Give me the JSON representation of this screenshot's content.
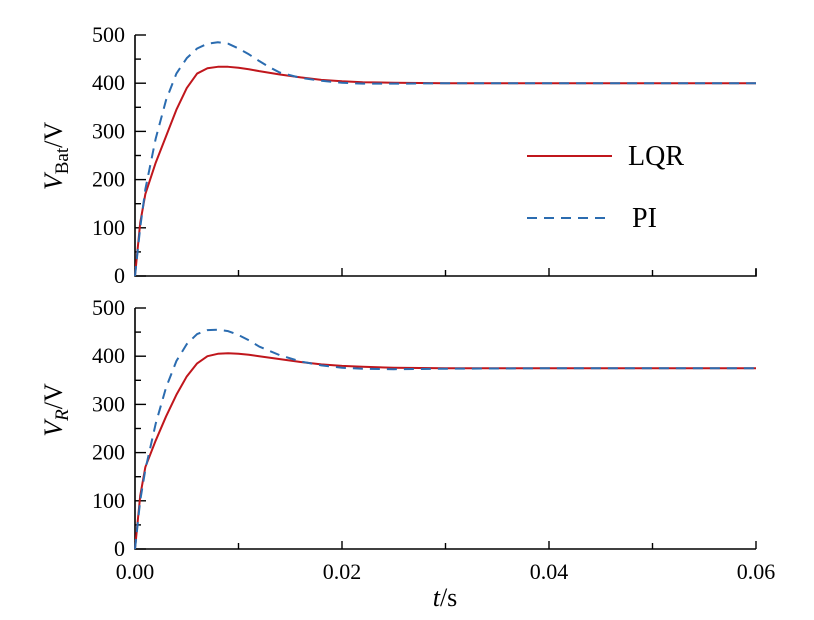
{
  "chart_data": [
    {
      "type": "line",
      "panel": "top",
      "ylabel": {
        "main": "V",
        "sub": "Bat",
        "unit": "/V"
      },
      "xlim": [
        0,
        0.06
      ],
      "ylim": [
        0,
        500
      ],
      "yticks": [
        0,
        100,
        200,
        300,
        400,
        500
      ],
      "ytick_labels": [
        "0",
        "100",
        "200",
        "300",
        "400",
        "500"
      ],
      "legend_position": "right",
      "series": [
        {
          "name": "LQR",
          "color": "#c0161c",
          "style": "solid",
          "x": [
            0,
            0.0005,
            0.001,
            0.002,
            0.003,
            0.004,
            0.005,
            0.006,
            0.007,
            0.008,
            0.009,
            0.01,
            0.011,
            0.012,
            0.014,
            0.016,
            0.018,
            0.02,
            0.022,
            0.025,
            0.03,
            0.04,
            0.05,
            0.06
          ],
          "y": [
            0,
            110,
            170,
            235,
            290,
            345,
            390,
            420,
            431,
            434,
            434,
            432,
            429,
            425,
            418,
            412,
            407,
            404,
            402,
            401,
            400,
            400,
            400,
            400
          ]
        },
        {
          "name": "PI",
          "color": "#2b6cb0",
          "style": "dashed",
          "x": [
            0,
            0.0005,
            0.001,
            0.002,
            0.003,
            0.004,
            0.005,
            0.006,
            0.007,
            0.008,
            0.009,
            0.01,
            0.011,
            0.012,
            0.013,
            0.014,
            0.016,
            0.018,
            0.02,
            0.022,
            0.025,
            0.03,
            0.04,
            0.05,
            0.06
          ],
          "y": [
            0,
            100,
            180,
            285,
            365,
            420,
            452,
            472,
            482,
            485,
            482,
            472,
            460,
            446,
            433,
            422,
            411,
            405,
            401,
            399,
            399,
            400,
            400,
            400,
            400
          ]
        }
      ]
    },
    {
      "type": "line",
      "panel": "bottom",
      "ylabel": {
        "main": "V",
        "sub": "R",
        "unit": "/V"
      },
      "xlabel": {
        "main": "t",
        "unit": "/s"
      },
      "xlim": [
        0,
        0.06
      ],
      "ylim": [
        0,
        500
      ],
      "xticks": [
        0,
        0.02,
        0.04,
        0.06
      ],
      "xtick_labels": [
        "0.00",
        "0.02",
        "0.04",
        "0.06"
      ],
      "yticks": [
        0,
        100,
        200,
        300,
        400,
        500
      ],
      "ytick_labels": [
        "0",
        "100",
        "200",
        "300",
        "400",
        "500"
      ],
      "series": [
        {
          "name": "LQR",
          "color": "#c0161c",
          "style": "solid",
          "x": [
            0,
            0.0005,
            0.001,
            0.002,
            0.003,
            0.004,
            0.005,
            0.006,
            0.007,
            0.008,
            0.009,
            0.01,
            0.011,
            0.012,
            0.014,
            0.016,
            0.018,
            0.02,
            0.022,
            0.025,
            0.03,
            0.04,
            0.05,
            0.06
          ],
          "y": [
            0,
            110,
            170,
            225,
            275,
            320,
            358,
            385,
            400,
            405,
            406,
            405,
            403,
            400,
            394,
            388,
            383,
            380,
            378,
            376,
            375,
            375,
            375,
            375
          ]
        },
        {
          "name": "PI",
          "color": "#2b6cb0",
          "style": "dashed",
          "x": [
            0,
            0.0005,
            0.001,
            0.002,
            0.003,
            0.004,
            0.005,
            0.006,
            0.007,
            0.008,
            0.009,
            0.01,
            0.011,
            0.012,
            0.014,
            0.016,
            0.018,
            0.02,
            0.022,
            0.025,
            0.03,
            0.04,
            0.05,
            0.06
          ],
          "y": [
            0,
            100,
            165,
            260,
            335,
            390,
            425,
            446,
            454,
            455,
            452,
            444,
            433,
            420,
            402,
            389,
            381,
            376,
            374,
            373,
            374,
            375,
            375,
            375
          ]
        }
      ]
    }
  ]
}
